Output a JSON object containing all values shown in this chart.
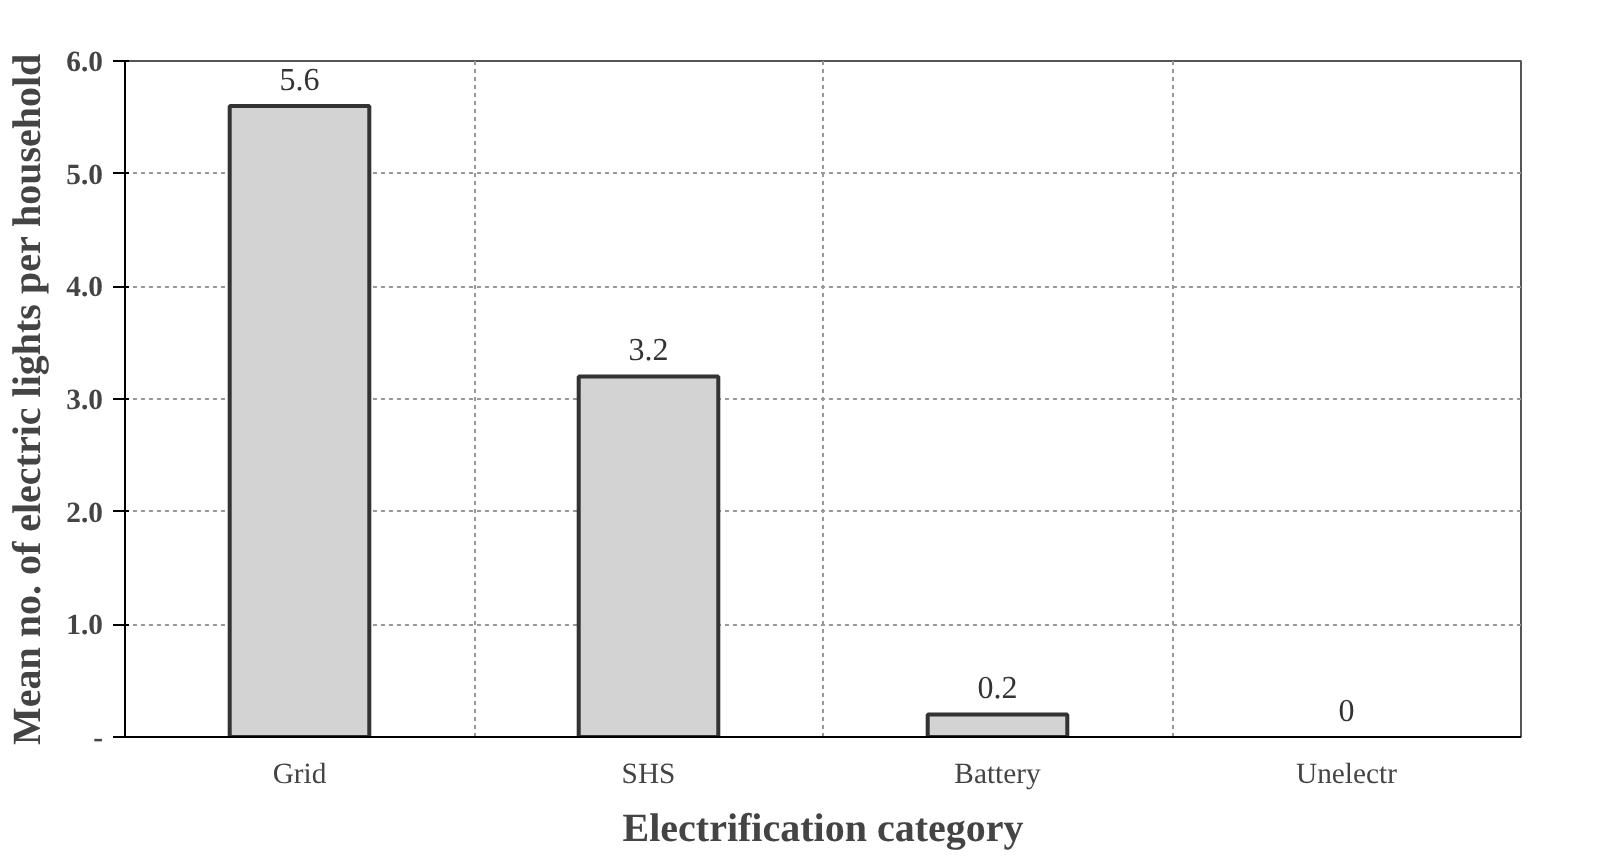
{
  "chart_data": {
    "type": "bar",
    "xlabel": "Electrification category",
    "ylabel": "Mean no. of electric lights per household",
    "categories": [
      "Grid",
      "SHS",
      "Battery",
      "Unelectr"
    ],
    "values": [
      5.6,
      3.2,
      0.2,
      0
    ],
    "color": "#d3d3d3",
    "ylim": [
      0,
      6
    ],
    "yticks": [
      {
        "value": 0,
        "label": "-"
      },
      {
        "value": 1,
        "label": "1.0"
      },
      {
        "value": 2,
        "label": "2.0"
      },
      {
        "value": 3,
        "label": "3.0"
      },
      {
        "value": 4,
        "label": "4.0"
      },
      {
        "value": 5,
        "label": "5.0"
      },
      {
        "value": 6,
        "label": "6.0"
      }
    ],
    "data_labels": true,
    "grid": true
  }
}
